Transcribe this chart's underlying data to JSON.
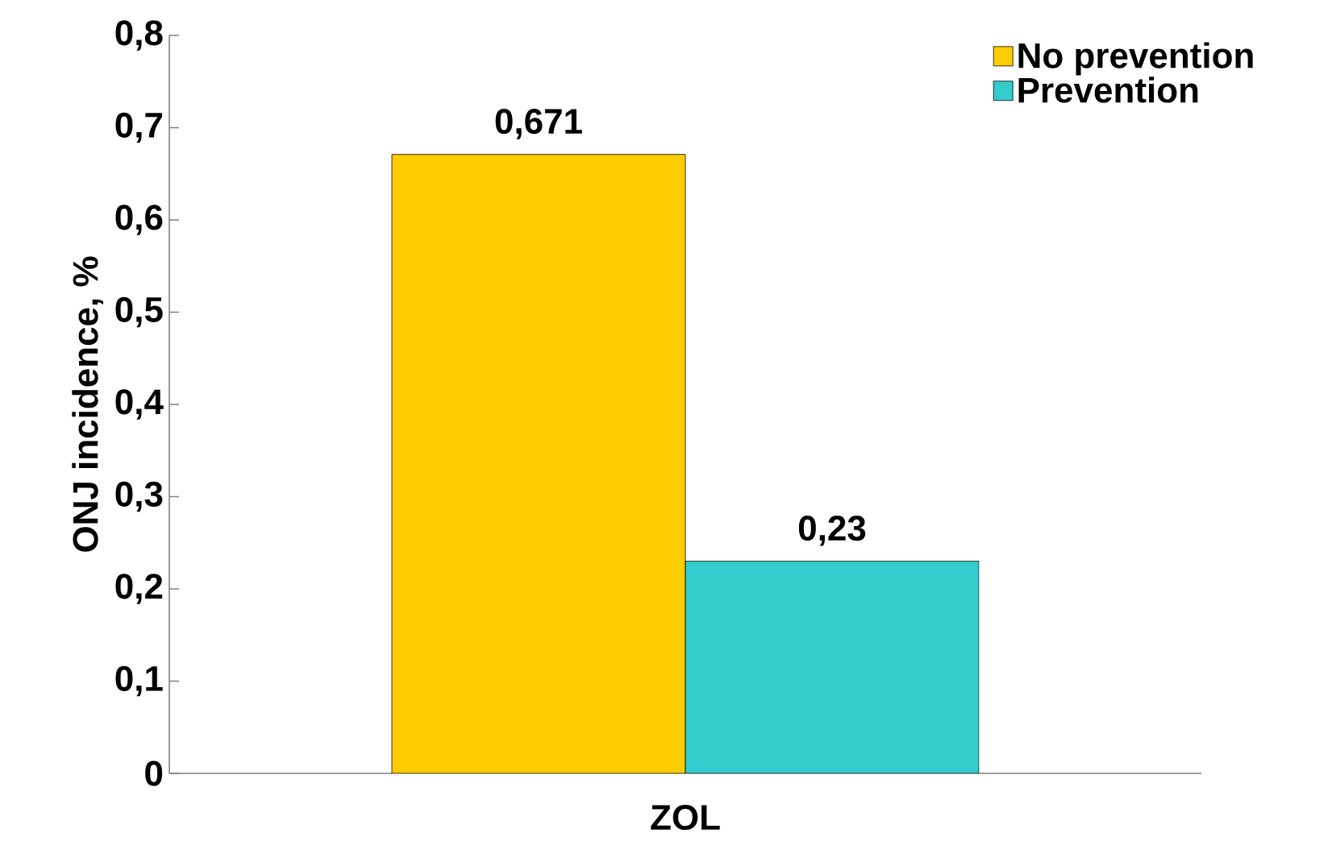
{
  "chart_data": {
    "type": "bar",
    "ylabel": "ONJ incidence, %",
    "categories": [
      "ZOL"
    ],
    "series": [
      {
        "name": "No prevention",
        "color": "#ffcc00",
        "values": [
          0.671
        ],
        "value_labels": [
          "0,671"
        ]
      },
      {
        "name": "Prevention",
        "color": "#33cccc",
        "values": [
          0.23
        ],
        "value_labels": [
          "0,23"
        ]
      }
    ],
    "ylim": [
      0,
      0.8
    ],
    "yticks": [
      {
        "value": 0,
        "label": "0"
      },
      {
        "value": 0.1,
        "label": "0,1"
      },
      {
        "value": 0.2,
        "label": "0,2"
      },
      {
        "value": 0.3,
        "label": "0,3"
      },
      {
        "value": 0.4,
        "label": "0,4"
      },
      {
        "value": 0.5,
        "label": "0,5"
      },
      {
        "value": 0.6,
        "label": "0,6"
      },
      {
        "value": 0.7,
        "label": "0,7"
      },
      {
        "value": 0.8,
        "label": "0,8"
      }
    ],
    "grid": false,
    "legend": "top right"
  }
}
